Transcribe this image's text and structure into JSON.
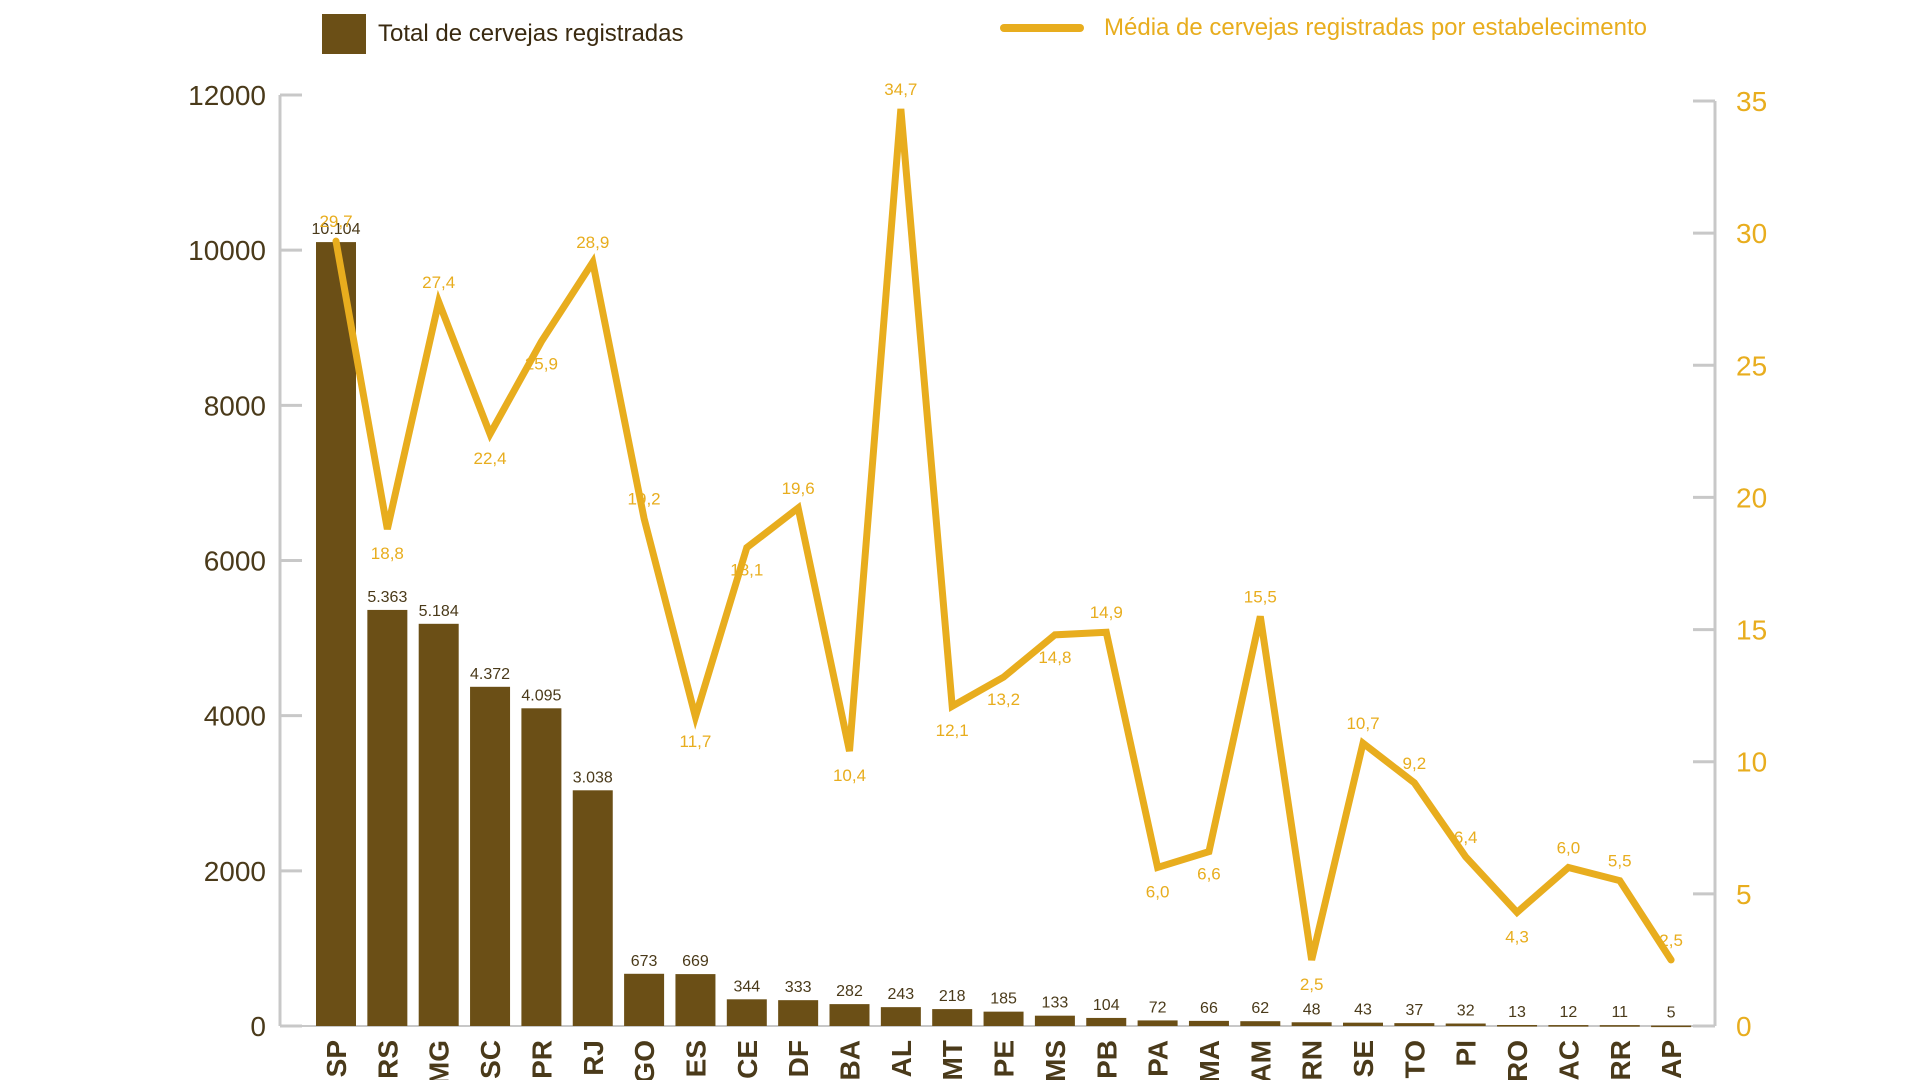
{
  "colors": {
    "bar": "#6b4f16",
    "line": "#e8ad1e",
    "axis": "#c8c8c8",
    "left_tick_text": "#4a3a1a",
    "category_text": "#4a3a1a"
  },
  "legend": {
    "bar_label": "Total de cervejas registradas",
    "line_label": "Média de cervejas registradas por estabelecimento"
  },
  "chart_data": {
    "type": "bar",
    "categories": [
      "SP",
      "RS",
      "MG",
      "SC",
      "PR",
      "RJ",
      "GO",
      "ES",
      "CE",
      "DF",
      "BA",
      "AL",
      "MT",
      "PE",
      "MS",
      "PB",
      "PA",
      "MA",
      "AM",
      "RN",
      "SE",
      "TO",
      "PI",
      "RO",
      "AC",
      "RR",
      "AP"
    ],
    "series": [
      {
        "name": "Total de cervejas registradas",
        "type": "bar",
        "axis": "left",
        "values": [
          10104,
          5363,
          5184,
          4372,
          4095,
          3038,
          673,
          669,
          344,
          333,
          282,
          243,
          218,
          185,
          133,
          104,
          72,
          66,
          62,
          48,
          43,
          37,
          32,
          13,
          12,
          11,
          5
        ],
        "labels": [
          "10.104",
          "5.363",
          "5.184",
          "4.372",
          "4.095",
          "3.038",
          "673",
          "669",
          "344",
          "333",
          "282",
          "243",
          "218",
          "185",
          "133",
          "104",
          "72",
          "66",
          "62",
          "48",
          "43",
          "37",
          "32",
          "13",
          "12",
          "11",
          "5"
        ]
      },
      {
        "name": "Média de cervejas registradas por estabelecimento",
        "type": "line",
        "axis": "right",
        "values": [
          29.7,
          18.8,
          27.4,
          22.4,
          25.9,
          28.9,
          19.2,
          11.7,
          18.1,
          19.6,
          10.4,
          34.7,
          12.1,
          13.2,
          14.8,
          14.9,
          6.0,
          6.6,
          15.5,
          2.5,
          10.7,
          9.2,
          6.4,
          4.3,
          6.0,
          5.5,
          2.5
        ],
        "labels": [
          "29,7",
          "18,8",
          "27,4",
          "22,4",
          "25,9",
          "28,9",
          "19,2",
          "11,7",
          "18,1",
          "19,6",
          "10,4",
          "34,7",
          "12,1",
          "13,2",
          "14,8",
          "14,9",
          "6,0",
          "6,6",
          "15,5",
          "2,5",
          "10,7",
          "9,2",
          "6,4",
          "4,3",
          "6,0",
          "5,5",
          "2,5"
        ]
      }
    ],
    "y_left": {
      "lim": [
        0,
        12000
      ],
      "ticks": [
        "0",
        "2000",
        "4000",
        "6000",
        "8000",
        "10000",
        "12000"
      ]
    },
    "y_right": {
      "lim": [
        0,
        35
      ],
      "ticks": [
        "0",
        "5",
        "10",
        "15",
        "20",
        "25",
        "30",
        "35"
      ]
    },
    "legend_position": "top",
    "grid": false
  }
}
